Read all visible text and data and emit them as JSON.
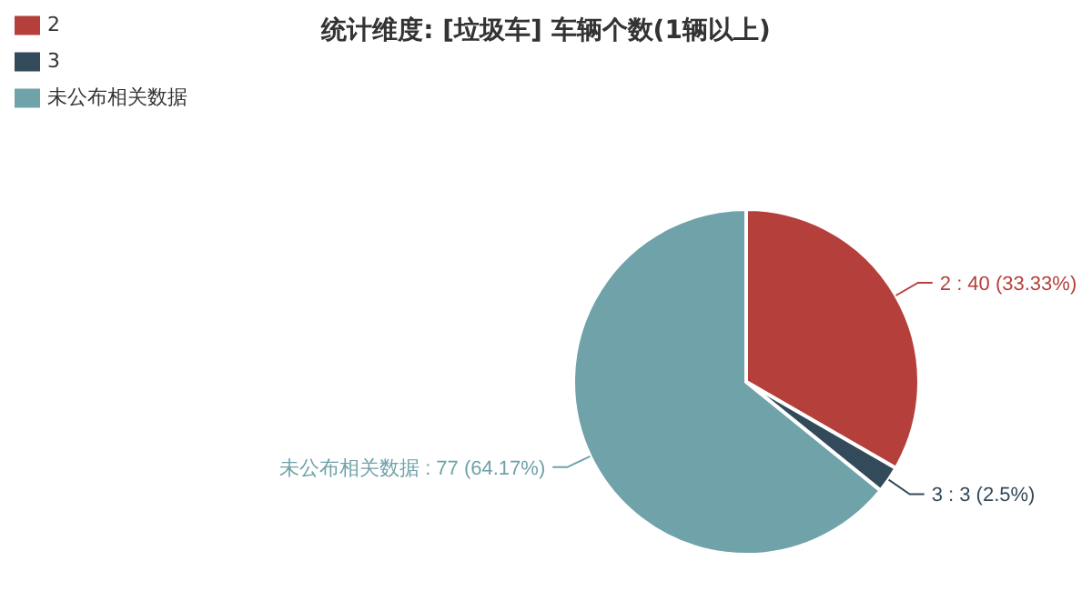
{
  "chart_data": {
    "type": "pie",
    "title": "统计维度: [垃圾车] 车辆个数(1辆以上)",
    "categories": [
      "2",
      "3",
      "未公布相关数据"
    ],
    "values": [
      40,
      3,
      77
    ],
    "colors": [
      "#b5403b",
      "#334a5a",
      "#6fa2a9"
    ],
    "value_labels": [
      "2 : 40 (33.33%)",
      "3 : 3 (2.5%)",
      "未公布相关数据 : 77 (64.17%)"
    ],
    "legend": "top left"
  }
}
